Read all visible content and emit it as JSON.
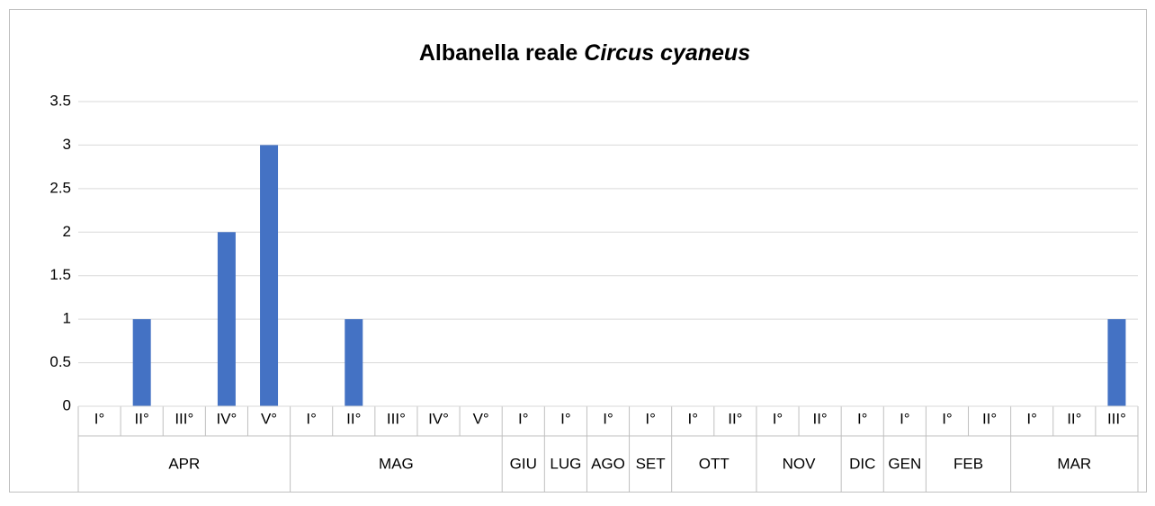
{
  "chart_data": {
    "type": "bar",
    "title": "Albanella reale",
    "title_species": "Circus cyaneus",
    "categories": [
      "I°",
      "II°",
      "III°",
      "IV°",
      "V°",
      "I°",
      "II°",
      "III°",
      "IV°",
      "V°",
      "I°",
      "I°",
      "I°",
      "I°",
      "I°",
      "II°",
      "I°",
      "II°",
      "I°",
      "I°",
      "I°",
      "II°",
      "I°",
      "II°",
      "III°"
    ],
    "groups": [
      "APR",
      "APR",
      "APR",
      "APR",
      "APR",
      "MAG",
      "MAG",
      "MAG",
      "MAG",
      "MAG",
      "GIU",
      "LUG",
      "AGO",
      "SET",
      "OTT",
      "OTT",
      "NOV",
      "NOV",
      "DIC",
      "GEN",
      "FEB",
      "FEB",
      "MAR",
      "MAR",
      "MAR"
    ],
    "values": [
      0,
      1,
      0,
      2,
      3,
      0,
      1,
      0,
      0,
      0,
      0,
      0,
      0,
      0,
      0,
      0,
      0,
      0,
      0,
      0,
      0,
      0,
      0,
      0,
      1
    ],
    "color": "#4472c4",
    "ylim": [
      0,
      3.5
    ],
    "yticks": [
      0,
      0.5,
      1,
      1.5,
      2,
      2.5,
      3,
      3.5
    ],
    "grid": true
  }
}
